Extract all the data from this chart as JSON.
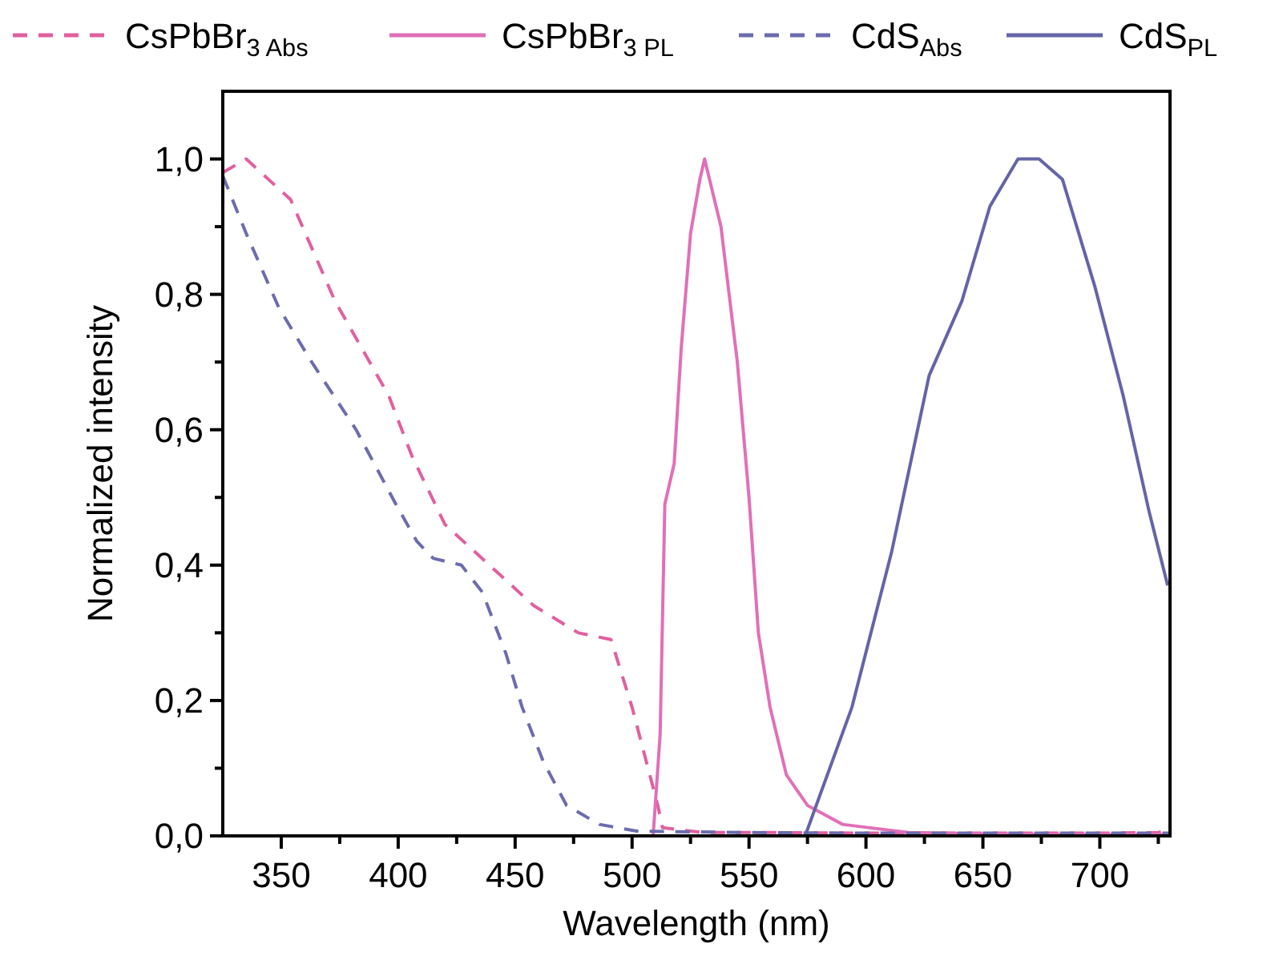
{
  "chart_data": {
    "type": "line",
    "xlabel": "Wavelength (nm)",
    "ylabel": "Normalized intensity",
    "xlim": [
      325,
      730
    ],
    "ylim": [
      0,
      1.1
    ],
    "xticks": [
      350,
      {
        "value": 375,
        "label": null
      },
      400,
      {
        "value": 425,
        "label": null
      },
      450,
      {
        "value": 475,
        "label": null
      },
      500,
      {
        "value": 525,
        "label": null
      },
      550,
      {
        "value": 575,
        "label": null
      },
      600,
      {
        "value": 625,
        "label": null
      },
      650,
      {
        "value": 675,
        "label": null
      },
      700,
      {
        "value": 725,
        "label": null
      }
    ],
    "yticks": [
      {
        "value": 0,
        "label": "0,0"
      },
      {
        "value": 0.1,
        "label": null
      },
      {
        "value": 0.2,
        "label": "0,2"
      },
      {
        "value": 0.3,
        "label": null
      },
      {
        "value": 0.4,
        "label": "0,4"
      },
      {
        "value": 0.5,
        "label": null
      },
      {
        "value": 0.6,
        "label": "0,6"
      },
      {
        "value": 0.7,
        "label": null
      },
      {
        "value": 0.8,
        "label": "0,8"
      },
      {
        "value": 0.9,
        "label": null
      },
      {
        "value": 1.0,
        "label": "1,0"
      }
    ],
    "legend": "top",
    "grid": false,
    "series": [
      {
        "name": "CsPbBr$_{3 Abs}$",
        "color": "#e0609f",
        "line_style": "dashed",
        "x": [
          325,
          335,
          354,
          373,
          396,
          406,
          420,
          439,
          458,
          477,
          491,
          500,
          511,
          513,
          530,
          560,
          600,
          650,
          700,
          725,
          730
        ],
        "values": [
          0.98,
          1.0,
          0.94,
          0.79,
          0.65,
          0.56,
          0.46,
          0.4,
          0.34,
          0.3,
          0.29,
          0.19,
          0.045,
          0.012,
          0.005,
          0.005,
          0.004,
          0.004,
          0.004,
          0.005,
          0.01
        ]
      },
      {
        "name": "CsPbBr$_{3 PL}$",
        "color": "#e070b8",
        "line_style": "solid",
        "x": [
          509,
          512,
          514,
          518,
          521,
          525,
          529,
          531,
          538,
          545,
          550,
          554,
          559,
          566,
          575,
          590,
          618,
          650,
          688,
          730
        ],
        "values": [
          0,
          0.15,
          0.49,
          0.55,
          0.72,
          0.89,
          0.97,
          1.0,
          0.9,
          0.7,
          0.5,
          0.3,
          0.19,
          0.09,
          0.045,
          0.017,
          0.005,
          0.003,
          0.002,
          0.002
        ]
      },
      {
        "name": "CdS$_{Abs}$",
        "color": "#6c6cae",
        "line_style": "dashed",
        "x": [
          325,
          335,
          349,
          363,
          382,
          399,
          408,
          415,
          427,
          436,
          446,
          453,
          462,
          472,
          486,
          502,
          550,
          600,
          650,
          700,
          730
        ],
        "values": [
          0.975,
          0.89,
          0.78,
          0.7,
          0.6,
          0.49,
          0.435,
          0.41,
          0.4,
          0.36,
          0.27,
          0.19,
          0.11,
          0.045,
          0.017,
          0.007,
          0.005,
          0.004,
          0.004,
          0.004,
          0.004
        ]
      },
      {
        "name": "CdS$_{PL}$",
        "color": "#6464a8",
        "line_style": "solid",
        "x": [
          574,
          594,
          611,
          627,
          641,
          653,
          665,
          674,
          684,
          698,
          710,
          721,
          729
        ],
        "values": [
          0,
          0.19,
          0.42,
          0.68,
          0.79,
          0.93,
          1.0,
          1.0,
          0.97,
          0.81,
          0.65,
          0.48,
          0.37
        ]
      }
    ]
  }
}
